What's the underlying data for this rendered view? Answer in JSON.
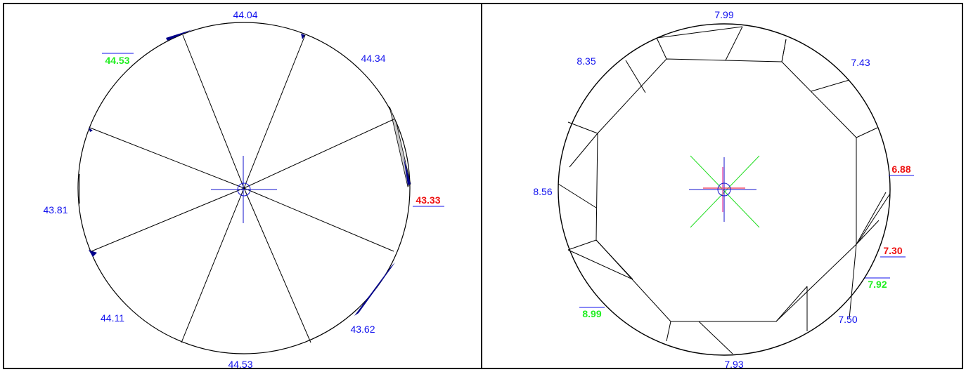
{
  "left_diagram": {
    "labels": {
      "top": "44.04",
      "top_left": "44.53",
      "top_right": "44.34",
      "right": "43.33",
      "left": "43.81",
      "bottom_left": "44.11",
      "bottom_right": "43.62",
      "bottom": "44.53"
    },
    "colors": {
      "normal": "#1010ee",
      "min": "#ee1111",
      "max": "#22ee22",
      "fill": "#00008b"
    }
  },
  "right_diagram": {
    "labels": {
      "top": "7.99",
      "top_left": "8.35",
      "top_right": "7.43",
      "right_upper": "6.88",
      "left": "8.56",
      "right_lower": "7.30",
      "right_bottom": "7.92",
      "bottom_right": "7.50",
      "bottom_left": "8.99",
      "bottom": "7.93"
    },
    "colors": {
      "normal": "#1010ee",
      "min": "#ee1111",
      "max": "#22ee22",
      "cross_green": "#22dd22",
      "cross_pink": "#ee55aa"
    }
  }
}
